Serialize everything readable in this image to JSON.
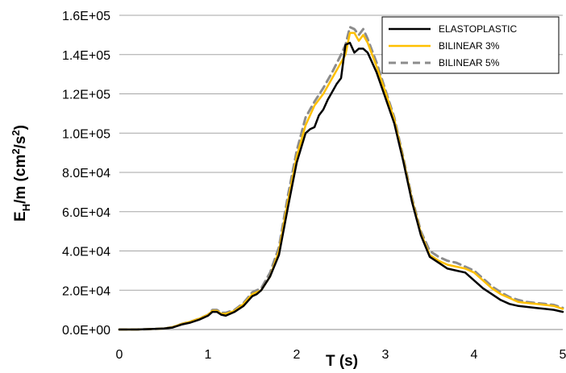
{
  "chart_data": {
    "type": "line",
    "xlabel": "T (s)",
    "ylabel": {
      "base": "E",
      "sub": "H",
      "rest": "/m (cm",
      "sup1": "2",
      "mid": "/s",
      "sup2": "2",
      "end": ")"
    },
    "xlim": [
      0,
      5
    ],
    "ylim": [
      0,
      160000
    ],
    "x_ticks": [
      0,
      1,
      2,
      3,
      4,
      5
    ],
    "x_tick_labels": [
      "0",
      "1",
      "2",
      "3",
      "4",
      "5"
    ],
    "y_ticks": [
      0,
      20000,
      40000,
      60000,
      80000,
      100000,
      120000,
      140000,
      160000
    ],
    "y_tick_labels": [
      "0.0E+00",
      "2.0E+04",
      "4.0E+04",
      "6.0E+04",
      "8.0E+04",
      "1.0E+05",
      "1.2E+05",
      "1.4E+05",
      "1.6E+05"
    ],
    "grid": "horizontal",
    "legend_position": "top-right",
    "series": [
      {
        "name": "ELASTOPLASTIC",
        "color": "#000000",
        "dash": "solid",
        "x": [
          0,
          0.2,
          0.4,
          0.5,
          0.6,
          0.7,
          0.8,
          0.9,
          1.0,
          1.05,
          1.1,
          1.15,
          1.2,
          1.3,
          1.4,
          1.5,
          1.55,
          1.6,
          1.7,
          1.8,
          1.9,
          2.0,
          2.1,
          2.15,
          2.2,
          2.25,
          2.3,
          2.35,
          2.4,
          2.45,
          2.5,
          2.55,
          2.6,
          2.65,
          2.7,
          2.75,
          2.8,
          2.85,
          2.9,
          3.0,
          3.1,
          3.2,
          3.3,
          3.4,
          3.5,
          3.6,
          3.7,
          3.8,
          3.9,
          3.95,
          4.0,
          4.1,
          4.2,
          4.3,
          4.4,
          4.5,
          4.6,
          4.7,
          4.8,
          4.9,
          5.0
        ],
        "y": [
          0,
          0,
          300,
          500,
          1000,
          2500,
          3500,
          5000,
          7000,
          9000,
          9000,
          7500,
          7000,
          9000,
          12000,
          17000,
          18000,
          20000,
          27000,
          38000,
          62000,
          85000,
          100000,
          102000,
          103000,
          109000,
          112000,
          117000,
          121000,
          125000,
          128000,
          145000,
          146000,
          141000,
          143000,
          143000,
          141000,
          136000,
          131000,
          118000,
          105000,
          86000,
          65000,
          48000,
          37000,
          34000,
          31000,
          30000,
          29000,
          27000,
          25000,
          21000,
          18000,
          15000,
          13000,
          12000,
          11500,
          11000,
          10500,
          10000,
          9000
        ]
      },
      {
        "name": "BILINEAR 3%",
        "color": "#FFC000",
        "dash": "solid",
        "x": [
          0,
          0.2,
          0.4,
          0.5,
          0.6,
          0.7,
          0.8,
          0.9,
          1.0,
          1.05,
          1.1,
          1.15,
          1.2,
          1.3,
          1.4,
          1.5,
          1.55,
          1.6,
          1.7,
          1.8,
          1.9,
          2.0,
          2.1,
          2.2,
          2.3,
          2.4,
          2.5,
          2.55,
          2.6,
          2.65,
          2.7,
          2.75,
          2.8,
          2.85,
          2.9,
          3.0,
          3.1,
          3.2,
          3.3,
          3.4,
          3.5,
          3.6,
          3.7,
          3.8,
          3.9,
          4.0,
          4.1,
          4.2,
          4.3,
          4.4,
          4.5,
          4.6,
          4.7,
          4.8,
          4.9,
          5.0
        ],
        "y": [
          0,
          0,
          300,
          500,
          1200,
          2800,
          4000,
          5500,
          7500,
          9500,
          9500,
          8000,
          8000,
          9500,
          13000,
          18000,
          19000,
          20000,
          27000,
          40000,
          65000,
          88000,
          104000,
          114000,
          120000,
          128000,
          136000,
          140000,
          151000,
          151000,
          147000,
          150000,
          146000,
          140000,
          134000,
          121000,
          107000,
          87000,
          66000,
          49000,
          38000,
          35000,
          33000,
          32000,
          31000,
          29000,
          25000,
          21000,
          18000,
          16000,
          14000,
          13500,
          13000,
          12500,
          12000,
          10500
        ]
      },
      {
        "name": "BILINEAR 5%",
        "color": "#8C8C8C",
        "dash": "dashed",
        "x": [
          0,
          0.2,
          0.4,
          0.5,
          0.6,
          0.7,
          0.8,
          0.9,
          1.0,
          1.05,
          1.1,
          1.15,
          1.2,
          1.3,
          1.4,
          1.5,
          1.55,
          1.6,
          1.7,
          1.8,
          1.9,
          2.0,
          2.1,
          2.2,
          2.3,
          2.4,
          2.5,
          2.55,
          2.6,
          2.65,
          2.7,
          2.75,
          2.8,
          2.85,
          2.9,
          3.0,
          3.1,
          3.2,
          3.3,
          3.4,
          3.5,
          3.6,
          3.7,
          3.8,
          3.9,
          4.0,
          4.1,
          4.2,
          4.3,
          4.4,
          4.5,
          4.6,
          4.7,
          4.8,
          4.9,
          5.0
        ],
        "y": [
          0,
          0,
          300,
          500,
          1200,
          2800,
          4000,
          5500,
          7500,
          10000,
          10000,
          8500,
          8500,
          10000,
          13500,
          19000,
          20000,
          21000,
          29000,
          42000,
          68000,
          91000,
          108000,
          116000,
          123000,
          131000,
          140000,
          145000,
          154000,
          153000,
          150000,
          153000,
          148000,
          142000,
          136000,
          122000,
          108000,
          88000,
          67000,
          50000,
          40000,
          37000,
          35000,
          34000,
          32000,
          30000,
          26000,
          22000,
          19000,
          16500,
          15000,
          14000,
          13500,
          13000,
          12500,
          11000
        ]
      }
    ]
  }
}
